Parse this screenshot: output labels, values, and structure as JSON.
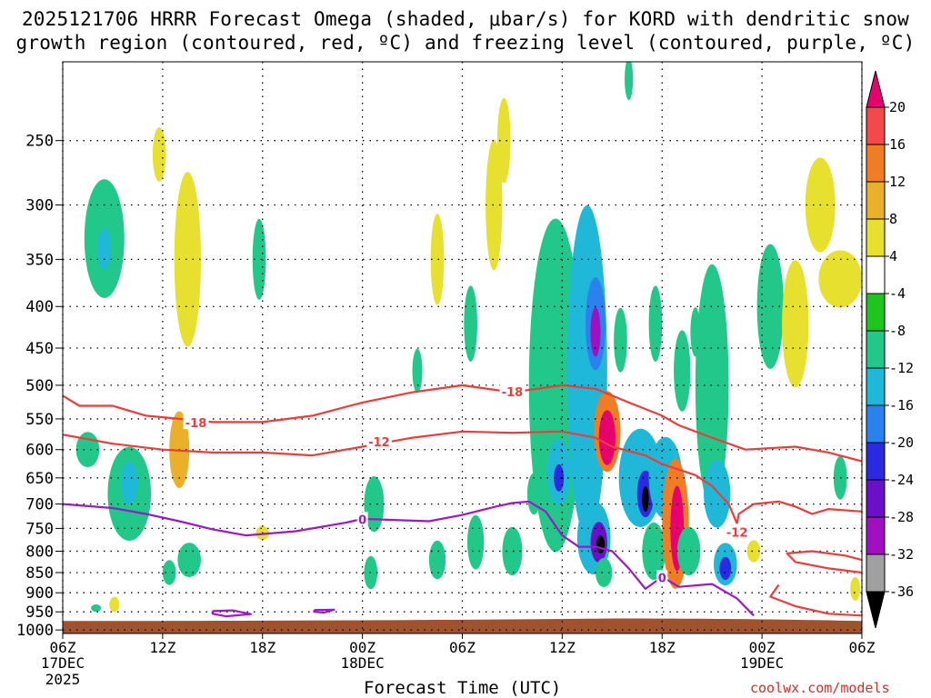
{
  "title_line1": "2025121706 HRRR Forecast Omega (shaded, μbar/s) for KORD with dendritic snow",
  "title_line2": "growth region (contoured, red, ºC) and freezing level (contoured, purple, ºC)",
  "credit": "coolwx.com/models",
  "chart_data": {
    "type": "heatmap",
    "title": "2025121706 HRRR Forecast Omega (shaded, μbar/s) for KORD with dendritic snow growth region (contoured, red, ºC) and freezing level (contoured, purple, ºC)",
    "xlabel": "Forecast Time (UTC)",
    "ylabel": "",
    "xlim_hours": [
      0,
      48
    ],
    "ylim_hpa": [
      1010,
      200
    ],
    "y_ticks": [
      250,
      300,
      350,
      400,
      450,
      500,
      550,
      600,
      650,
      700,
      750,
      800,
      850,
      900,
      950,
      1000
    ],
    "x_ticks": [
      {
        "hour": 0,
        "label": "06Z",
        "sub": "17DEC",
        "sub2": "2025"
      },
      {
        "hour": 6,
        "label": "12Z",
        "sub": "",
        "sub2": ""
      },
      {
        "hour": 12,
        "label": "18Z",
        "sub": "",
        "sub2": ""
      },
      {
        "hour": 18,
        "label": "00Z",
        "sub": "18DEC",
        "sub2": ""
      },
      {
        "hour": 24,
        "label": "06Z",
        "sub": "",
        "sub2": ""
      },
      {
        "hour": 30,
        "label": "12Z",
        "sub": "",
        "sub2": ""
      },
      {
        "hour": 36,
        "label": "18Z",
        "sub": "",
        "sub2": ""
      },
      {
        "hour": 42,
        "label": "00Z",
        "sub": "19DEC",
        "sub2": ""
      },
      {
        "hour": 48,
        "label": "06Z",
        "sub": "",
        "sub2": ""
      }
    ],
    "grid": true,
    "colorbar": {
      "labels": [
        "20",
        "16",
        "12",
        "8",
        "4",
        "-4",
        "-8",
        "-12",
        "-16",
        "-20",
        "-24",
        "-28",
        "-32",
        "-36"
      ],
      "colors": [
        "#e8006e",
        "#f24a4a",
        "#f07d24",
        "#eab02a",
        "#e8e02e",
        "#ffffff",
        "#1ec51e",
        "#22c88a",
        "#20b8d8",
        "#2a82ee",
        "#2a2ae0",
        "#6a10c8",
        "#a010c0",
        "#a0a0a0",
        "#000000"
      ]
    },
    "ground_color": "#a0522d",
    "contours": [
      {
        "name": "minus-18",
        "label": "-18",
        "color": "#ee3b3b",
        "points": [
          [
            0,
            515
          ],
          [
            1,
            530
          ],
          [
            3,
            530
          ],
          [
            5,
            545
          ],
          [
            7,
            550
          ],
          [
            9,
            555
          ],
          [
            12,
            555
          ],
          [
            15,
            545
          ],
          [
            18,
            525
          ],
          [
            21,
            510
          ],
          [
            24,
            500
          ],
          [
            27,
            510
          ],
          [
            30,
            500
          ],
          [
            32,
            505
          ],
          [
            34,
            525
          ],
          [
            36,
            545
          ],
          [
            37,
            560
          ],
          [
            39,
            580
          ],
          [
            41,
            600
          ],
          [
            44,
            595
          ],
          [
            46,
            605
          ],
          [
            48,
            620
          ]
        ],
        "label_at": [
          [
            8,
            556
          ],
          [
            27,
            509
          ]
        ]
      },
      {
        "name": "minus-12",
        "label": "-12",
        "color": "#ee3b3b",
        "points": [
          [
            0,
            575
          ],
          [
            3,
            590
          ],
          [
            6,
            600
          ],
          [
            9,
            605
          ],
          [
            12,
            605
          ],
          [
            15,
            610
          ],
          [
            18,
            595
          ],
          [
            21,
            580
          ],
          [
            24,
            570
          ],
          [
            27,
            572
          ],
          [
            30,
            570
          ],
          [
            32,
            580
          ],
          [
            33,
            595
          ],
          [
            35,
            610
          ],
          [
            36,
            625
          ],
          [
            38,
            645
          ],
          [
            39,
            665
          ],
          [
            40,
            700
          ],
          [
            40.5,
            740
          ]
        ],
        "label_at": [
          [
            19,
            587
          ],
          [
            40.5,
            758
          ]
        ]
      },
      {
        "name": "minus-12-east",
        "label": "",
        "color": "#ee3b3b",
        "points": [
          [
            40.5,
            740
          ],
          [
            40.6,
            720
          ],
          [
            41.5,
            700
          ],
          [
            43,
            695
          ],
          [
            44,
            705
          ],
          [
            45,
            720
          ],
          [
            46,
            710
          ],
          [
            48,
            715
          ]
        ]
      },
      {
        "name": "minus-12-low",
        "label": "",
        "color": "#ee3b3b",
        "points": [
          [
            48,
            850
          ],
          [
            46,
            840
          ],
          [
            44,
            825
          ],
          [
            43.5,
            805
          ],
          [
            45,
            800
          ],
          [
            47,
            810
          ],
          [
            48,
            820
          ]
        ]
      },
      {
        "name": "minus-12-low2",
        "label": "",
        "color": "#ee3b3b",
        "points": [
          [
            48,
            960
          ],
          [
            46,
            955
          ],
          [
            44,
            935
          ],
          [
            42.5,
            910
          ],
          [
            43,
            880
          ]
        ]
      },
      {
        "name": "freezing-0",
        "label": "0",
        "color": "#9a19c8",
        "points": [
          [
            0,
            700
          ],
          [
            3,
            708
          ],
          [
            5,
            720
          ],
          [
            7,
            735
          ],
          [
            9,
            752
          ],
          [
            11,
            765
          ],
          [
            14,
            756
          ],
          [
            17,
            738
          ],
          [
            18,
            730
          ],
          [
            22,
            735
          ],
          [
            24,
            722
          ],
          [
            26,
            705
          ],
          [
            27,
            698
          ],
          [
            28,
            695
          ],
          [
            29,
            715
          ],
          [
            30,
            765
          ],
          [
            31,
            790
          ],
          [
            32,
            790
          ],
          [
            33,
            800
          ],
          [
            34,
            840
          ],
          [
            35,
            890
          ],
          [
            36,
            860
          ],
          [
            37,
            885
          ],
          [
            39,
            878
          ],
          [
            40.5,
            915
          ],
          [
            41.5,
            960
          ]
        ],
        "label_at": [
          [
            18,
            731
          ],
          [
            36,
            862
          ]
        ]
      },
      {
        "name": "freezing-0-blob1",
        "label": "",
        "color": "#9a19c8",
        "points": [
          [
            9,
            948
          ],
          [
            10.2,
            946
          ],
          [
            11.3,
            956
          ],
          [
            9.8,
            962
          ],
          [
            9,
            955
          ],
          [
            9,
            948
          ]
        ]
      },
      {
        "name": "freezing-0-blob2",
        "label": "",
        "color": "#9a19c8",
        "points": [
          [
            15.1,
            945
          ],
          [
            16.3,
            944
          ],
          [
            15.7,
            952
          ],
          [
            15.1,
            950
          ],
          [
            15.1,
            945
          ]
        ]
      }
    ],
    "omega_blobs": [
      {
        "hour": 1.5,
        "p": 600,
        "dh": 0.7,
        "dp": 60,
        "value": -9
      },
      {
        "hour": 2.5,
        "p": 330,
        "dh": 1.2,
        "dp": 110,
        "value": -10
      },
      {
        "hour": 2.5,
        "p": 340,
        "dh": 0.4,
        "dp": 40,
        "value": -14
      },
      {
        "hour": 4.0,
        "p": 680,
        "dh": 1.3,
        "dp": 180,
        "value": -10
      },
      {
        "hour": 4.0,
        "p": 660,
        "dh": 0.5,
        "dp": 80,
        "value": -14
      },
      {
        "hour": 5.8,
        "p": 260,
        "dh": 0.4,
        "dp": 40,
        "value": 6
      },
      {
        "hour": 7.5,
        "p": 350,
        "dh": 0.8,
        "dp": 170,
        "value": 6
      },
      {
        "hour": 7.0,
        "p": 600,
        "dh": 0.6,
        "dp": 130,
        "value": 10
      },
      {
        "hour": 7.6,
        "p": 820,
        "dh": 0.7,
        "dp": 80,
        "value": -9
      },
      {
        "hour": 6.4,
        "p": 850,
        "dh": 0.4,
        "dp": 60,
        "value": -9
      },
      {
        "hour": 11.8,
        "p": 350,
        "dh": 0.4,
        "dp": 80,
        "value": -9
      },
      {
        "hour": 12.0,
        "p": 760,
        "dh": 0.4,
        "dp": 30,
        "value": 6
      },
      {
        "hour": 18.7,
        "p": 700,
        "dh": 0.6,
        "dp": 110,
        "value": -9
      },
      {
        "hour": 18.5,
        "p": 850,
        "dh": 0.4,
        "dp": 80,
        "value": -9
      },
      {
        "hour": 21.3,
        "p": 480,
        "dh": 0.3,
        "dp": 60,
        "value": -9
      },
      {
        "hour": 22.5,
        "p": 350,
        "dh": 0.4,
        "dp": 90,
        "value": 6
      },
      {
        "hour": 22.5,
        "p": 820,
        "dh": 0.5,
        "dp": 90,
        "value": -9
      },
      {
        "hour": 24.5,
        "p": 420,
        "dh": 0.4,
        "dp": 90,
        "value": -9
      },
      {
        "hour": 24.8,
        "p": 780,
        "dh": 0.5,
        "dp": 120,
        "value": -9
      },
      {
        "hour": 25.9,
        "p": 300,
        "dh": 0.5,
        "dp": 110,
        "value": 6
      },
      {
        "hour": 26.5,
        "p": 250,
        "dh": 0.4,
        "dp": 60,
        "value": 6
      },
      {
        "hour": 27.0,
        "p": 800,
        "dh": 0.6,
        "dp": 110,
        "value": -9
      },
      {
        "hour": 28.3,
        "p": 680,
        "dh": 0.4,
        "dp": 80,
        "value": -9
      },
      {
        "hour": 29.6,
        "p": 500,
        "dh": 1.6,
        "dp": 440,
        "value": -9
      },
      {
        "hour": 29.8,
        "p": 640,
        "dh": 0.7,
        "dp": 120,
        "value": -14
      },
      {
        "hour": 29.8,
        "p": 650,
        "dh": 0.3,
        "dp": 50,
        "value": -22
      },
      {
        "hour": 31.5,
        "p": 480,
        "dh": 1.2,
        "dp": 420,
        "value": -12
      },
      {
        "hour": 32.0,
        "p": 420,
        "dh": 0.6,
        "dp": 110,
        "value": -18
      },
      {
        "hour": 32.0,
        "p": 430,
        "dh": 0.3,
        "dp": 60,
        "value": -28
      },
      {
        "hour": 31.9,
        "p": 770,
        "dh": 1.0,
        "dp": 160,
        "value": -14
      },
      {
        "hour": 32.2,
        "p": 780,
        "dh": 0.5,
        "dp": 90,
        "value": -26
      },
      {
        "hour": 32.3,
        "p": 785,
        "dh": 0.25,
        "dp": 40,
        "value": -40
      },
      {
        "hour": 32.7,
        "p": 570,
        "dh": 0.8,
        "dp": 130,
        "value": 13
      },
      {
        "hour": 32.7,
        "p": 580,
        "dh": 0.5,
        "dp": 90,
        "value": 22
      },
      {
        "hour": 32.5,
        "p": 850,
        "dh": 0.5,
        "dp": 70,
        "value": -9
      },
      {
        "hour": 33.5,
        "p": 440,
        "dh": 0.4,
        "dp": 80,
        "value": -9
      },
      {
        "hour": 34.7,
        "p": 650,
        "dh": 1.3,
        "dp": 180,
        "value": -12
      },
      {
        "hour": 35.0,
        "p": 680,
        "dh": 0.5,
        "dp": 90,
        "value": -20
      },
      {
        "hour": 35.0,
        "p": 690,
        "dh": 0.2,
        "dp": 50,
        "value": -40
      },
      {
        "hour": 35.6,
        "p": 420,
        "dh": 0.4,
        "dp": 90,
        "value": -9
      },
      {
        "hour": 35.5,
        "p": 800,
        "dh": 0.7,
        "dp": 130,
        "value": -9
      },
      {
        "hour": 37.2,
        "p": 480,
        "dh": 0.5,
        "dp": 110,
        "value": -9
      },
      {
        "hour": 36.2,
        "p": 650,
        "dh": 1.0,
        "dp": 150,
        "value": -14
      },
      {
        "hour": 36.8,
        "p": 740,
        "dh": 0.8,
        "dp": 270,
        "value": 12
      },
      {
        "hour": 36.9,
        "p": 750,
        "dh": 0.4,
        "dp": 180,
        "value": 22
      },
      {
        "hour": 38.0,
        "p": 430,
        "dh": 0.3,
        "dp": 60,
        "value": -9
      },
      {
        "hour": 37.6,
        "p": 800,
        "dh": 0.7,
        "dp": 110,
        "value": -9
      },
      {
        "hour": 39.0,
        "p": 500,
        "dh": 1.0,
        "dp": 330,
        "value": -9
      },
      {
        "hour": 39.3,
        "p": 680,
        "dh": 0.8,
        "dp": 130,
        "value": -14
      },
      {
        "hour": 39.8,
        "p": 830,
        "dh": 0.7,
        "dp": 100,
        "value": -14
      },
      {
        "hour": 39.8,
        "p": 840,
        "dh": 0.35,
        "dp": 55,
        "value": -22
      },
      {
        "hour": 41.5,
        "p": 800,
        "dh": 0.4,
        "dp": 50,
        "value": 6
      },
      {
        "hour": 42.5,
        "p": 400,
        "dh": 0.8,
        "dp": 140,
        "value": -9
      },
      {
        "hour": 44.0,
        "p": 420,
        "dh": 0.8,
        "dp": 150,
        "value": 6
      },
      {
        "hour": 45.5,
        "p": 300,
        "dh": 0.9,
        "dp": 80,
        "value": 6
      },
      {
        "hour": 46.7,
        "p": 370,
        "dh": 1.3,
        "dp": 60,
        "value": 6
      },
      {
        "hour": 47.6,
        "p": 890,
        "dh": 0.3,
        "dp": 60,
        "value": 6
      },
      {
        "hour": 46.7,
        "p": 650,
        "dh": 0.4,
        "dp": 80,
        "value": -9
      },
      {
        "hour": 34.0,
        "p": 210,
        "dh": 0.25,
        "dp": 25,
        "value": -9
      },
      {
        "hour": 2.0,
        "p": 940,
        "dh": 0.3,
        "dp": 20,
        "value": -9
      },
      {
        "hour": 3.1,
        "p": 930,
        "dh": 0.3,
        "dp": 40,
        "value": 6
      }
    ]
  }
}
